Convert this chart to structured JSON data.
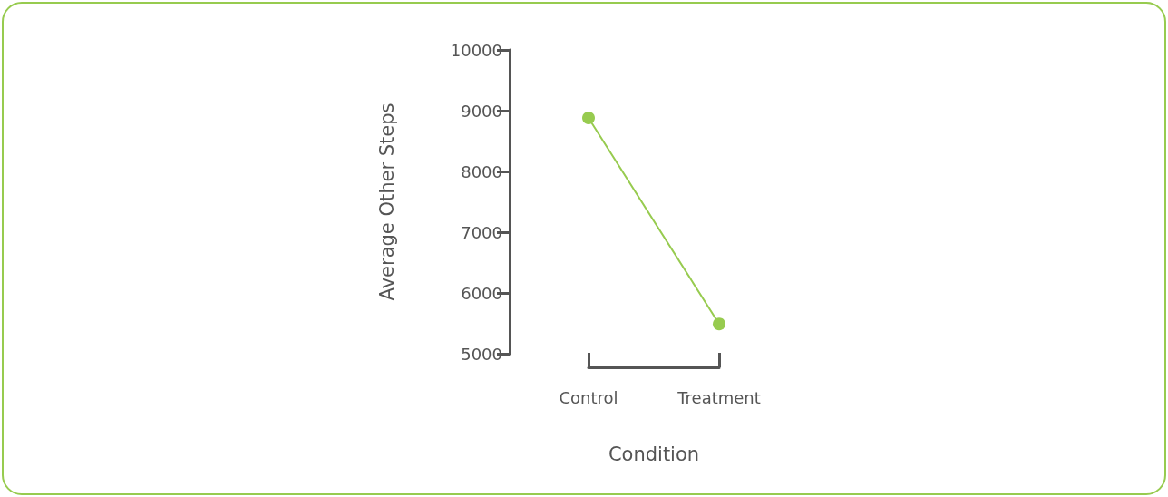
{
  "chart_data": {
    "type": "line",
    "xlabel": "Condition",
    "ylabel": "Average Other Steps",
    "categories": [
      "Control",
      "Treatment"
    ],
    "series": [
      {
        "color": "#97cb4f",
        "values": [
          8880,
          5490
        ]
      }
    ],
    "ylim": [
      5000,
      10000
    ],
    "yticks": [
      5000,
      6000,
      7000,
      8000,
      9000,
      10000
    ],
    "grid": false,
    "marker": "circle",
    "line_style": "solid"
  }
}
